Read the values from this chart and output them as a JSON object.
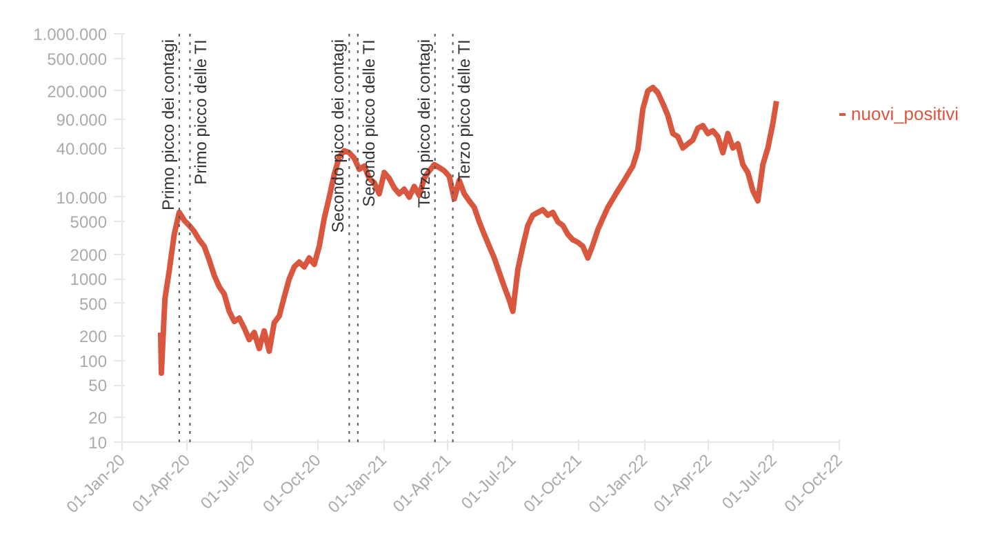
{
  "chart_data": {
    "type": "line",
    "log": "y",
    "legend": "right",
    "marker": "none",
    "line_style": "solid",
    "xlim": [
      "2020-01-01",
      "2022-10-01"
    ],
    "xticks": [
      {
        "value": "2020-01-01",
        "label": "01-Jan-20"
      },
      {
        "value": "2020-04-01",
        "label": "01-Apr-20"
      },
      {
        "value": "2020-07-01",
        "label": "01-Jul-20"
      },
      {
        "value": "2020-10-01",
        "label": "01-Oct-20"
      },
      {
        "value": "2021-01-01",
        "label": "01-Jan-21"
      },
      {
        "value": "2021-04-01",
        "label": "01-Apr-21"
      },
      {
        "value": "2021-07-01",
        "label": "01-Jul-21"
      },
      {
        "value": "2021-10-01",
        "label": "01-Oct-21"
      },
      {
        "value": "2022-01-01",
        "label": "01-Jan-22"
      },
      {
        "value": "2022-04-01",
        "label": "01-Apr-22"
      },
      {
        "value": "2022-07-01",
        "label": "01-Jul-22"
      },
      {
        "value": "2022-10-01",
        "label": "01-Oct-22"
      }
    ],
    "ylim": [
      10,
      1000000
    ],
    "yticks": [
      10,
      20,
      50,
      100,
      200,
      500,
      1000,
      2000,
      5000,
      {
        "value": 10000,
        "label": "10.000"
      },
      {
        "value": 40000,
        "label": "40.000"
      },
      {
        "value": 90000,
        "label": "90.000"
      },
      {
        "value": 200000,
        "label": "200.000"
      },
      {
        "value": 500000,
        "label": "500.000"
      },
      {
        "value": 1000000,
        "label": "1.000.000"
      }
    ],
    "ref_lines": [
      {
        "axis": "x",
        "value": "2020-03-21",
        "label": "Primo picco dei contagi",
        "color": "#555555",
        "line_style": "dotted"
      },
      {
        "axis": "x",
        "value": "2020-04-05",
        "label": "Primo picco delle TI",
        "color": "#555555",
        "line_style": "dotted"
      },
      {
        "axis": "x",
        "value": "2020-11-14",
        "label": "Secondo picco dei contagi",
        "color": "#555555",
        "line_style": "dotted"
      },
      {
        "axis": "x",
        "value": "2020-11-26",
        "label": "Secondo picco delle TI",
        "color": "#555555",
        "line_style": "dotted"
      },
      {
        "axis": "x",
        "value": "2021-03-14",
        "label": "Terzo picco dei contagi",
        "color": "#555555",
        "line_style": "dotted"
      },
      {
        "axis": "x",
        "value": "2021-04-08",
        "label": "Terzo picco delle TI",
        "color": "#555555",
        "line_style": "dotted"
      }
    ],
    "series": [
      {
        "name": "nuovi_positivi",
        "color": "#d9573f",
        "x": [
          "2020-02-24",
          "2020-02-25",
          "2020-03-01",
          "2020-03-07",
          "2020-03-14",
          "2020-03-21",
          "2020-03-28",
          "2020-04-04",
          "2020-04-11",
          "2020-04-18",
          "2020-04-25",
          "2020-05-02",
          "2020-05-09",
          "2020-05-16",
          "2020-05-23",
          "2020-05-30",
          "2020-06-06",
          "2020-06-13",
          "2020-06-20",
          "2020-06-27",
          "2020-07-04",
          "2020-07-11",
          "2020-07-18",
          "2020-07-25",
          "2020-08-01",
          "2020-08-08",
          "2020-08-15",
          "2020-08-22",
          "2020-08-29",
          "2020-09-05",
          "2020-09-12",
          "2020-09-19",
          "2020-09-26",
          "2020-10-03",
          "2020-10-10",
          "2020-10-17",
          "2020-10-24",
          "2020-10-31",
          "2020-11-07",
          "2020-11-14",
          "2020-11-21",
          "2020-11-28",
          "2020-12-05",
          "2020-12-12",
          "2020-12-19",
          "2020-12-26",
          "2021-01-02",
          "2021-01-09",
          "2021-01-16",
          "2021-01-23",
          "2021-01-30",
          "2021-02-06",
          "2021-02-13",
          "2021-02-20",
          "2021-02-27",
          "2021-03-06",
          "2021-03-13",
          "2021-03-20",
          "2021-03-27",
          "2021-04-03",
          "2021-04-10",
          "2021-04-17",
          "2021-04-24",
          "2021-05-01",
          "2021-05-08",
          "2021-05-15",
          "2021-05-22",
          "2021-05-29",
          "2021-06-05",
          "2021-06-12",
          "2021-06-19",
          "2021-06-26",
          "2021-07-01",
          "2021-07-08",
          "2021-07-15",
          "2021-07-22",
          "2021-07-29",
          "2021-08-05",
          "2021-08-12",
          "2021-08-19",
          "2021-08-26",
          "2021-09-02",
          "2021-09-09",
          "2021-09-16",
          "2021-09-23",
          "2021-09-30",
          "2021-10-07",
          "2021-10-14",
          "2021-10-21",
          "2021-10-28",
          "2021-11-04",
          "2021-11-11",
          "2021-11-18",
          "2021-11-25",
          "2021-12-02",
          "2021-12-09",
          "2021-12-16",
          "2021-12-23",
          "2021-12-30",
          "2022-01-06",
          "2022-01-13",
          "2022-01-20",
          "2022-01-27",
          "2022-02-03",
          "2022-02-10",
          "2022-02-17",
          "2022-02-24",
          "2022-03-03",
          "2022-03-10",
          "2022-03-17",
          "2022-03-24",
          "2022-03-31",
          "2022-04-07",
          "2022-04-14",
          "2022-04-21",
          "2022-04-28",
          "2022-05-05",
          "2022-05-12",
          "2022-05-19",
          "2022-05-26",
          "2022-06-02",
          "2022-06-09",
          "2022-06-16",
          "2022-06-23",
          "2022-06-30",
          "2022-07-05"
        ],
        "values": [
          220,
          70,
          570,
          1250,
          3500,
          6500,
          5200,
          4500,
          3800,
          3000,
          2500,
          1700,
          1100,
          800,
          650,
          400,
          300,
          330,
          250,
          180,
          220,
          140,
          230,
          130,
          290,
          350,
          600,
          1000,
          1400,
          1600,
          1400,
          1800,
          1500,
          2500,
          5500,
          10000,
          19000,
          31000,
          37000,
          35000,
          30000,
          22000,
          24000,
          17000,
          15000,
          11000,
          20000,
          17000,
          13000,
          11000,
          12500,
          10000,
          13500,
          10500,
          17000,
          21000,
          25000,
          23000,
          21000,
          18000,
          9500,
          16000,
          11000,
          9000,
          7500,
          5000,
          3500,
          2500,
          1800,
          1200,
          800,
          550,
          400,
          1300,
          2500,
          4500,
          6000,
          6500,
          7000,
          6000,
          6500,
          5000,
          4500,
          3500,
          3000,
          2800,
          2500,
          1800,
          2600,
          4000,
          5500,
          7500,
          9500,
          12000,
          15000,
          19000,
          24000,
          38000,
          120000,
          200000,
          220000,
          190000,
          140000,
          100000,
          60000,
          55000,
          40000,
          45000,
          50000,
          70000,
          75000,
          60000,
          65000,
          55000,
          35000,
          60000,
          40000,
          45000,
          25000,
          20000,
          12000,
          9000,
          25000,
          40000,
          80000,
          150000
        ]
      }
    ]
  }
}
